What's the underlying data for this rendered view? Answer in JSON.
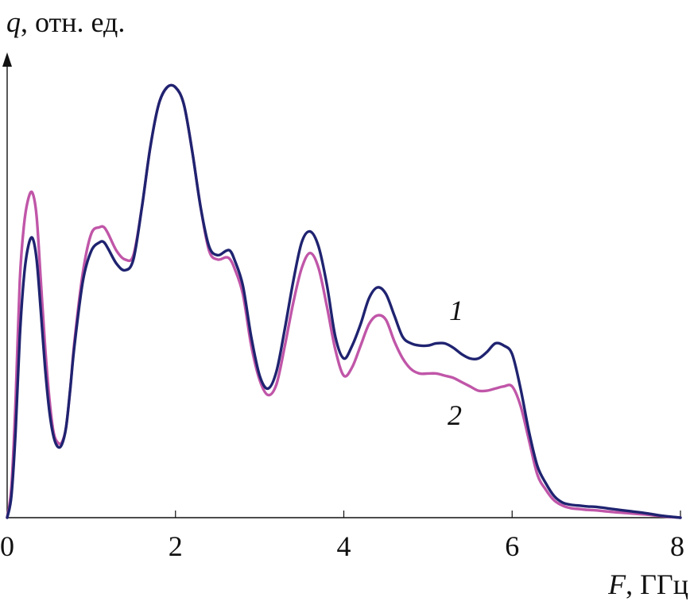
{
  "chart_data": {
    "type": "line",
    "ylabel_var": "q",
    "ylabel_unit": ", отн. ед.",
    "xlabel_var": "F",
    "xlabel_unit": ", ГГц",
    "xlim": [
      0,
      8
    ],
    "ylim": [
      0,
      1.0
    ],
    "xticks": [
      "0",
      "2",
      "4",
      "6",
      "8"
    ],
    "grid": false,
    "series": [
      {
        "name": "1",
        "color": "#1f2370",
        "x": [
          0.0,
          0.05,
          0.1,
          0.15,
          0.2,
          0.25,
          0.3,
          0.35,
          0.4,
          0.45,
          0.5,
          0.55,
          0.6,
          0.65,
          0.7,
          0.75,
          0.8,
          0.9,
          1.0,
          1.1,
          1.15,
          1.2,
          1.3,
          1.4,
          1.5,
          1.6,
          1.7,
          1.8,
          1.9,
          2.0,
          2.1,
          2.2,
          2.3,
          2.4,
          2.5,
          2.6,
          2.65,
          2.7,
          2.8,
          2.9,
          3.0,
          3.1,
          3.2,
          3.3,
          3.4,
          3.5,
          3.6,
          3.7,
          3.8,
          3.9,
          4.0,
          4.1,
          4.2,
          4.3,
          4.4,
          4.5,
          4.6,
          4.7,
          4.8,
          4.9,
          5.0,
          5.1,
          5.2,
          5.3,
          5.4,
          5.5,
          5.6,
          5.7,
          5.8,
          5.9,
          6.0,
          6.1,
          6.2,
          6.3,
          6.4,
          6.5,
          6.6,
          6.7,
          6.8,
          6.9,
          7.0,
          7.2,
          7.4,
          7.6,
          7.8,
          8.0
        ],
        "y": [
          0.0,
          0.05,
          0.2,
          0.42,
          0.56,
          0.63,
          0.65,
          0.6,
          0.48,
          0.35,
          0.25,
          0.19,
          0.165,
          0.17,
          0.21,
          0.3,
          0.4,
          0.55,
          0.62,
          0.64,
          0.64,
          0.625,
          0.59,
          0.575,
          0.6,
          0.72,
          0.86,
          0.96,
          1.0,
          1.0,
          0.96,
          0.85,
          0.72,
          0.63,
          0.61,
          0.62,
          0.62,
          0.6,
          0.54,
          0.42,
          0.33,
          0.3,
          0.34,
          0.44,
          0.55,
          0.64,
          0.665,
          0.63,
          0.54,
          0.42,
          0.37,
          0.4,
          0.45,
          0.51,
          0.535,
          0.52,
          0.47,
          0.42,
          0.405,
          0.4,
          0.4,
          0.405,
          0.405,
          0.395,
          0.38,
          0.37,
          0.37,
          0.385,
          0.405,
          0.4,
          0.38,
          0.3,
          0.2,
          0.12,
          0.08,
          0.05,
          0.035,
          0.03,
          0.028,
          0.026,
          0.025,
          0.02,
          0.015,
          0.01,
          0.004,
          0.0
        ]
      },
      {
        "name": "2",
        "color": "#c056a8",
        "x": [
          0.0,
          0.05,
          0.1,
          0.15,
          0.2,
          0.25,
          0.3,
          0.35,
          0.4,
          0.45,
          0.5,
          0.55,
          0.6,
          0.65,
          0.7,
          0.75,
          0.8,
          0.9,
          1.0,
          1.1,
          1.15,
          1.2,
          1.3,
          1.4,
          1.5,
          1.6,
          1.7,
          1.8,
          1.9,
          2.0,
          2.1,
          2.2,
          2.3,
          2.4,
          2.5,
          2.6,
          2.65,
          2.7,
          2.8,
          2.9,
          3.0,
          3.1,
          3.2,
          3.3,
          3.4,
          3.5,
          3.6,
          3.7,
          3.8,
          3.9,
          4.0,
          4.1,
          4.2,
          4.3,
          4.4,
          4.5,
          4.6,
          4.7,
          4.8,
          4.9,
          5.0,
          5.1,
          5.2,
          5.3,
          5.4,
          5.5,
          5.6,
          5.7,
          5.8,
          5.9,
          6.0,
          6.1,
          6.2,
          6.3,
          6.4,
          6.5,
          6.6,
          6.7,
          6.8,
          6.9,
          7.0,
          7.2,
          7.4,
          7.6,
          7.8,
          8.0
        ],
        "y": [
          0.0,
          0.07,
          0.27,
          0.55,
          0.68,
          0.74,
          0.755,
          0.7,
          0.55,
          0.4,
          0.28,
          0.2,
          0.175,
          0.175,
          0.21,
          0.3,
          0.41,
          0.57,
          0.66,
          0.675,
          0.675,
          0.66,
          0.62,
          0.6,
          0.61,
          0.72,
          0.86,
          0.96,
          1.0,
          1.0,
          0.96,
          0.85,
          0.72,
          0.62,
          0.6,
          0.605,
          0.6,
          0.58,
          0.52,
          0.4,
          0.32,
          0.285,
          0.31,
          0.4,
          0.5,
          0.58,
          0.615,
          0.58,
          0.49,
          0.39,
          0.33,
          0.35,
          0.4,
          0.45,
          0.47,
          0.46,
          0.41,
          0.37,
          0.345,
          0.335,
          0.335,
          0.335,
          0.33,
          0.325,
          0.315,
          0.305,
          0.295,
          0.295,
          0.3,
          0.305,
          0.305,
          0.26,
          0.18,
          0.1,
          0.065,
          0.04,
          0.028,
          0.022,
          0.02,
          0.018,
          0.017,
          0.013,
          0.01,
          0.007,
          0.003,
          0.0
        ]
      }
    ]
  }
}
